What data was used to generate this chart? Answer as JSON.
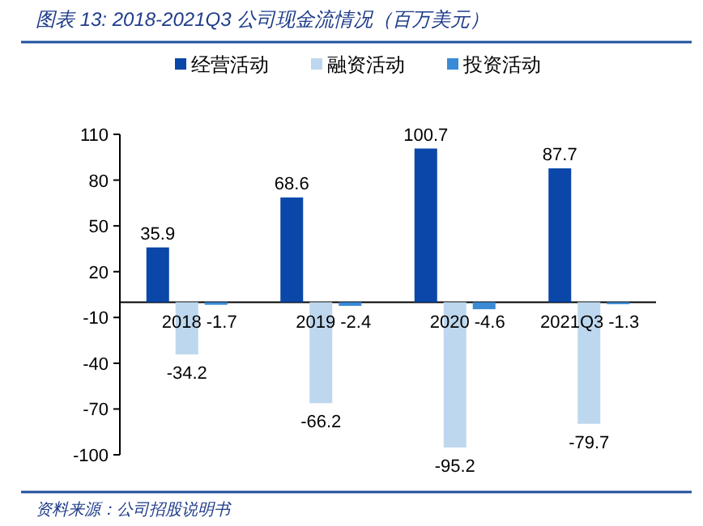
{
  "chart_data": {
    "type": "bar",
    "title": "图表 13:  2018-2021Q3 公司现金流情况（百万美元）",
    "categories": [
      "2018",
      "2019",
      "2020",
      "2021Q3"
    ],
    "series": [
      {
        "name": "经营活动",
        "color": "#0a47a8",
        "values": [
          35.9,
          68.6,
          100.7,
          87.7
        ]
      },
      {
        "name": "融资活动",
        "color": "#bdd7ee",
        "values": [
          -34.2,
          -66.2,
          -95.2,
          -79.7
        ]
      },
      {
        "name": "投资活动",
        "color": "#3a8ad6",
        "values": [
          -1.7,
          -2.4,
          -4.6,
          -1.3
        ]
      }
    ],
    "ylim": [
      -100,
      110
    ],
    "yticks": [
      -100,
      -70,
      -40,
      -10,
      20,
      50,
      80,
      110
    ],
    "data_labels": true,
    "legend": "top",
    "grid": false,
    "annotations": [
      "资料来源：公司招股说明书"
    ]
  }
}
